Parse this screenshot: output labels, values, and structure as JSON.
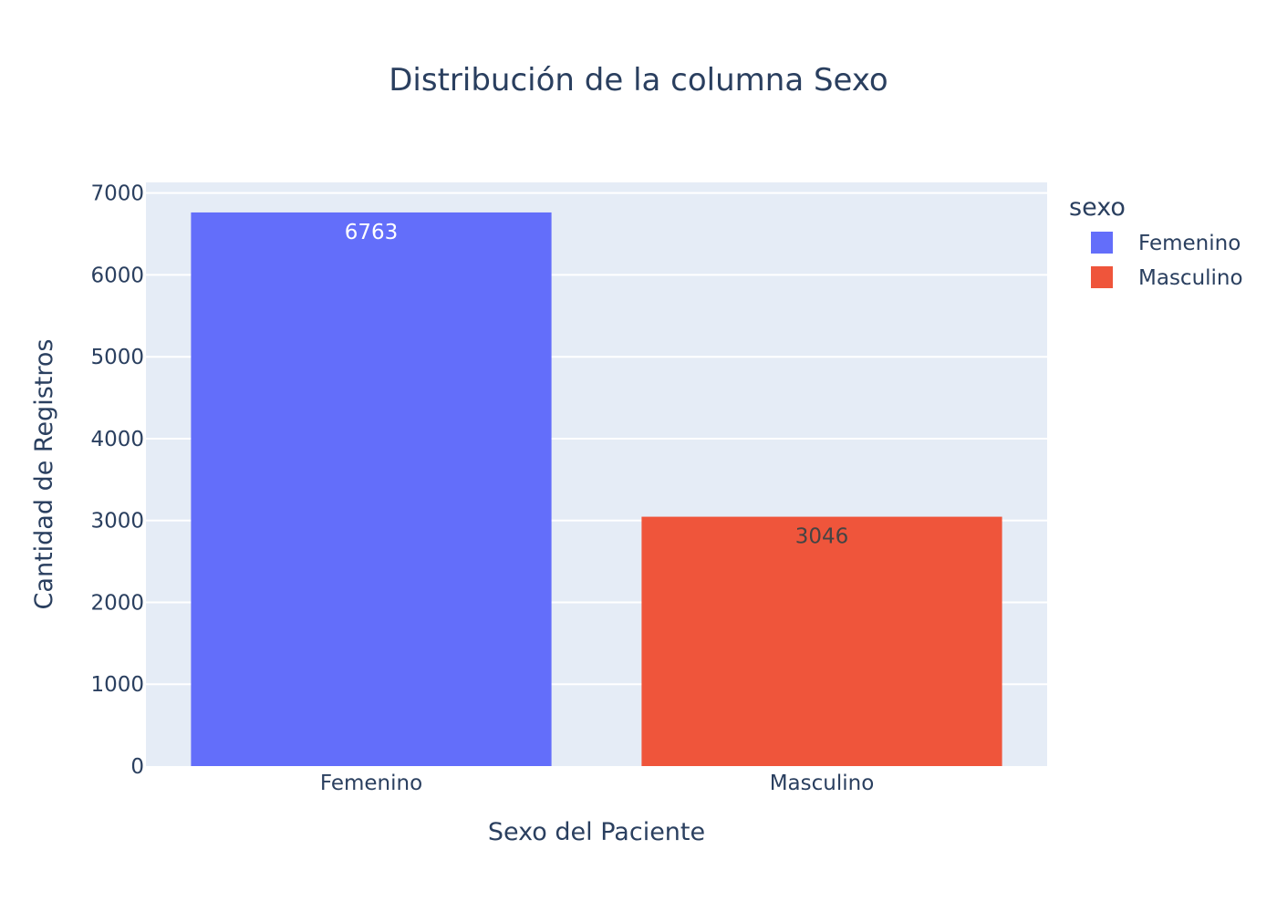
{
  "chart_data": {
    "type": "bar",
    "title": "Distribución de la columna Sexo",
    "xlabel": "Sexo del Paciente",
    "ylabel": "Cantidad de Registros",
    "categories": [
      "Femenino",
      "Masculino"
    ],
    "series": [
      {
        "name": "Femenino",
        "category": "Femenino",
        "value": 6763,
        "color": "#636efa",
        "label_color": "#ffffff"
      },
      {
        "name": "Masculino",
        "category": "Masculino",
        "value": 3046,
        "color": "#ef553b",
        "label_color": "#444444"
      }
    ],
    "ylim": [
      0,
      7000
    ],
    "yticks": [
      0,
      1000,
      2000,
      3000,
      4000,
      5000,
      6000,
      7000
    ],
    "grid": true,
    "legend": {
      "title": "sexo",
      "position": "top-right"
    },
    "colors": {
      "plot_bg": "#e5ecf6",
      "grid": "#ffffff",
      "text": "#2a3f5f"
    }
  }
}
